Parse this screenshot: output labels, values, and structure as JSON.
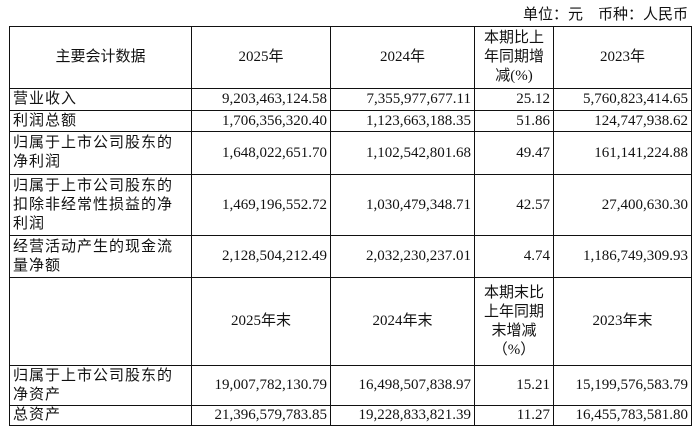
{
  "unit_line": "单位：元　币种：人民币",
  "header1": {
    "label": "主要会计数据",
    "c1": "2025年",
    "c2": "2024年",
    "c3": "本期比上年同期增减(%)",
    "c4": "2023年"
  },
  "rows1": [
    {
      "label": "营业收入",
      "v1": "9,203,463,124.58",
      "v2": "7,355,977,677.11",
      "pct": "25.12",
      "v3": "5,760,823,414.65"
    },
    {
      "label": "利润总额",
      "v1": "1,706,356,320.40",
      "v2": "1,123,663,188.35",
      "pct": "51.86",
      "v3": "124,747,938.62"
    },
    {
      "label": "归属于上市公司股东的净利润",
      "v1": "1,648,022,651.70",
      "v2": "1,102,542,801.68",
      "pct": "49.47",
      "v3": "161,141,224.88"
    },
    {
      "label": "归属于上市公司股东的扣除非经常性损益的净利润",
      "v1": "1,469,196,552.72",
      "v2": "1,030,479,348.71",
      "pct": "42.57",
      "v3": "27,400,630.30"
    },
    {
      "label": "经营活动产生的现金流量净额",
      "v1": "2,128,504,212.49",
      "v2": "2,032,230,237.01",
      "pct": "4.74",
      "v3": "1,186,749,309.93"
    }
  ],
  "header2": {
    "label": "",
    "c1": "2025年末",
    "c2": "2024年末",
    "c3": "本期末比上年同期末增减（%）",
    "c4": "2023年末"
  },
  "rows2": [
    {
      "label": "归属于上市公司股东的净资产",
      "v1": "19,007,782,130.79",
      "v2": "16,498,507,838.97",
      "pct": "15.21",
      "v3": "15,199,576,583.79"
    },
    {
      "label": "总资产",
      "v1": "21,396,579,783.85",
      "v2": "19,228,833,821.39",
      "pct": "11.27",
      "v3": "16,455,783,581.80"
    }
  ]
}
